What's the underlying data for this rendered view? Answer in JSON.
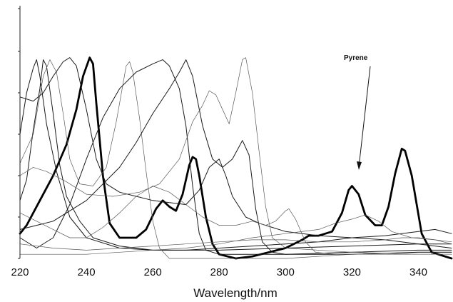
{
  "chart_data": {
    "type": "line",
    "title": "",
    "xlabel": "Wavelength/nm",
    "ylabel": "",
    "xlim": [
      220,
      350
    ],
    "ylim": [
      0,
      1
    ],
    "x_ticks": [
      "220",
      "240",
      "260",
      "280",
      "300",
      "320",
      "340"
    ],
    "grid": false,
    "legend": "none",
    "annotations": [
      {
        "text": "Pyrene",
        "target_x": 320,
        "target_y": 0.33
      }
    ],
    "series": [
      {
        "style": "bold",
        "points": [
          [
            220,
            0.12
          ],
          [
            222,
            0.16
          ],
          [
            226,
            0.28
          ],
          [
            230,
            0.4
          ],
          [
            234,
            0.55
          ],
          [
            237,
            0.72
          ],
          [
            239,
            0.88
          ],
          [
            241,
            0.97
          ],
          [
            242,
            0.94
          ],
          [
            243,
            0.75
          ],
          [
            245,
            0.4
          ],
          [
            247,
            0.17
          ],
          [
            250,
            0.1
          ],
          [
            255,
            0.1
          ],
          [
            258,
            0.14
          ],
          [
            261,
            0.24
          ],
          [
            263,
            0.28
          ],
          [
            265,
            0.25
          ],
          [
            267,
            0.23
          ],
          [
            269,
            0.31
          ],
          [
            271,
            0.45
          ],
          [
            272,
            0.49
          ],
          [
            273,
            0.48
          ],
          [
            274,
            0.4
          ],
          [
            276,
            0.2
          ],
          [
            278,
            0.07
          ],
          [
            280,
            0.02
          ],
          [
            285,
            0.0
          ],
          [
            290,
            0.01
          ],
          [
            295,
            0.03
          ],
          [
            300,
            0.05
          ],
          [
            305,
            0.09
          ],
          [
            307,
            0.11
          ],
          [
            310,
            0.11
          ],
          [
            314,
            0.13
          ],
          [
            317,
            0.22
          ],
          [
            319,
            0.33
          ],
          [
            320,
            0.35
          ],
          [
            322,
            0.31
          ],
          [
            324,
            0.21
          ],
          [
            327,
            0.16
          ],
          [
            329,
            0.16
          ],
          [
            331,
            0.25
          ],
          [
            333,
            0.41
          ],
          [
            335,
            0.53
          ],
          [
            336,
            0.52
          ],
          [
            338,
            0.4
          ],
          [
            341,
            0.12
          ],
          [
            344,
            0.03
          ],
          [
            350,
            0.0
          ]
        ]
      },
      {
        "style": "medium",
        "points": [
          [
            220,
            0.6
          ],
          [
            222,
            0.8
          ],
          [
            224,
            0.92
          ],
          [
            225,
            0.96
          ],
          [
            226,
            0.88
          ],
          [
            228,
            0.65
          ],
          [
            231,
            0.42
          ],
          [
            235,
            0.2
          ],
          [
            240,
            0.1
          ],
          [
            250,
            0.05
          ],
          [
            260,
            0.04
          ],
          [
            270,
            0.04
          ],
          [
            280,
            0.05
          ],
          [
            290,
            0.06
          ],
          [
            300,
            0.07
          ],
          [
            310,
            0.08
          ],
          [
            320,
            0.1
          ],
          [
            330,
            0.11
          ],
          [
            340,
            0.13
          ],
          [
            345,
            0.14
          ],
          [
            350,
            0.12
          ]
        ]
      },
      {
        "style": "medium",
        "points": [
          [
            220,
            0.28
          ],
          [
            222,
            0.38
          ],
          [
            224,
            0.62
          ],
          [
            226,
            0.82
          ],
          [
            227,
            0.96
          ],
          [
            228,
            0.93
          ],
          [
            230,
            0.7
          ],
          [
            232,
            0.45
          ],
          [
            234,
            0.3
          ],
          [
            238,
            0.18
          ],
          [
            242,
            0.1
          ],
          [
            250,
            0.06
          ],
          [
            260,
            0.04
          ],
          [
            280,
            0.04
          ],
          [
            300,
            0.05
          ],
          [
            320,
            0.06
          ],
          [
            340,
            0.07
          ],
          [
            350,
            0.07
          ]
        ]
      },
      {
        "style": "thin",
        "points": [
          [
            220,
            0.46
          ],
          [
            224,
            0.6
          ],
          [
            227,
            0.88
          ],
          [
            229,
            0.96
          ],
          [
            231,
            0.9
          ],
          [
            233,
            0.7
          ],
          [
            235,
            0.48
          ],
          [
            238,
            0.36
          ],
          [
            242,
            0.35
          ],
          [
            246,
            0.44
          ],
          [
            249,
            0.66
          ],
          [
            252,
            0.93
          ],
          [
            253,
            0.95
          ],
          [
            254,
            0.9
          ],
          [
            256,
            0.68
          ],
          [
            258,
            0.42
          ],
          [
            260,
            0.18
          ],
          [
            262,
            0.05
          ],
          [
            265,
            0.0
          ],
          [
            280,
            0.0
          ],
          [
            300,
            0.0
          ],
          [
            320,
            0.02
          ],
          [
            340,
            0.03
          ],
          [
            350,
            0.03
          ]
        ]
      },
      {
        "style": "medium",
        "points": [
          [
            220,
            0.78
          ],
          [
            224,
            0.76
          ],
          [
            227,
            0.8
          ],
          [
            230,
            0.88
          ],
          [
            233,
            0.95
          ],
          [
            235,
            0.97
          ],
          [
            237,
            0.93
          ],
          [
            240,
            0.72
          ],
          [
            243,
            0.48
          ],
          [
            246,
            0.36
          ],
          [
            250,
            0.32
          ],
          [
            255,
            0.3
          ],
          [
            260,
            0.28
          ],
          [
            265,
            0.27
          ],
          [
            270,
            0.26
          ],
          [
            274,
            0.33
          ],
          [
            277,
            0.44
          ],
          [
            280,
            0.48
          ],
          [
            282,
            0.4
          ],
          [
            284,
            0.3
          ],
          [
            288,
            0.2
          ],
          [
            292,
            0.17
          ],
          [
            296,
            0.15
          ],
          [
            300,
            0.13
          ],
          [
            310,
            0.11
          ],
          [
            320,
            0.1
          ],
          [
            330,
            0.09
          ],
          [
            340,
            0.07
          ],
          [
            350,
            0.05
          ]
        ]
      },
      {
        "style": "medium",
        "points": [
          [
            220,
            0.1
          ],
          [
            225,
            0.05
          ],
          [
            230,
            0.1
          ],
          [
            235,
            0.26
          ],
          [
            240,
            0.48
          ],
          [
            245,
            0.68
          ],
          [
            250,
            0.82
          ],
          [
            255,
            0.9
          ],
          [
            260,
            0.94
          ],
          [
            263,
            0.96
          ],
          [
            265,
            0.93
          ],
          [
            268,
            0.82
          ],
          [
            270,
            0.64
          ],
          [
            272,
            0.35
          ],
          [
            274,
            0.12
          ],
          [
            276,
            0.04
          ],
          [
            280,
            0.02
          ],
          [
            300,
            0.02
          ],
          [
            320,
            0.03
          ],
          [
            340,
            0.04
          ],
          [
            350,
            0.04
          ]
        ]
      },
      {
        "style": "medium",
        "points": [
          [
            220,
            0.14
          ],
          [
            225,
            0.16
          ],
          [
            230,
            0.18
          ],
          [
            240,
            0.28
          ],
          [
            250,
            0.44
          ],
          [
            255,
            0.56
          ],
          [
            260,
            0.7
          ],
          [
            265,
            0.82
          ],
          [
            268,
            0.9
          ],
          [
            270,
            0.96
          ],
          [
            272,
            0.88
          ],
          [
            275,
            0.64
          ],
          [
            278,
            0.48
          ],
          [
            281,
            0.44
          ],
          [
            284,
            0.48
          ],
          [
            286,
            0.54
          ],
          [
            287,
            0.57
          ],
          [
            289,
            0.5
          ],
          [
            291,
            0.24
          ],
          [
            293,
            0.08
          ],
          [
            296,
            0.03
          ],
          [
            300,
            0.02
          ],
          [
            320,
            0.02
          ],
          [
            340,
            0.03
          ],
          [
            350,
            0.03
          ]
        ]
      },
      {
        "style": "thin",
        "points": [
          [
            220,
            0.4
          ],
          [
            224,
            0.44
          ],
          [
            228,
            0.42
          ],
          [
            234,
            0.37
          ],
          [
            240,
            0.31
          ],
          [
            248,
            0.3
          ],
          [
            256,
            0.32
          ],
          [
            262,
            0.36
          ],
          [
            268,
            0.48
          ],
          [
            272,
            0.66
          ],
          [
            275,
            0.74
          ],
          [
            277,
            0.81
          ],
          [
            279,
            0.79
          ],
          [
            281,
            0.72
          ],
          [
            283,
            0.65
          ],
          [
            285,
            0.8
          ],
          [
            287,
            0.96
          ],
          [
            288,
            0.97
          ],
          [
            290,
            0.8
          ],
          [
            292,
            0.52
          ],
          [
            294,
            0.25
          ],
          [
            296,
            0.1
          ],
          [
            300,
            0.05
          ],
          [
            320,
            0.03
          ],
          [
            340,
            0.02
          ],
          [
            350,
            0.02
          ]
        ]
      },
      {
        "style": "thin",
        "points": [
          [
            220,
            0.22
          ],
          [
            225,
            0.18
          ],
          [
            230,
            0.14
          ],
          [
            235,
            0.1
          ],
          [
            240,
            0.1
          ],
          [
            245,
            0.15
          ],
          [
            250,
            0.22
          ],
          [
            255,
            0.3
          ],
          [
            260,
            0.35
          ],
          [
            265,
            0.32
          ],
          [
            270,
            0.26
          ],
          [
            275,
            0.2
          ],
          [
            280,
            0.16
          ],
          [
            285,
            0.16
          ],
          [
            290,
            0.18
          ],
          [
            294,
            0.16
          ],
          [
            297,
            0.18
          ],
          [
            300,
            0.23
          ],
          [
            301,
            0.24
          ],
          [
            303,
            0.19
          ],
          [
            306,
            0.08
          ],
          [
            309,
            0.03
          ],
          [
            315,
            0.02
          ],
          [
            330,
            0.02
          ],
          [
            350,
            0.02
          ]
        ]
      },
      {
        "style": "thin",
        "points": [
          [
            220,
            0.02
          ],
          [
            230,
            0.02
          ],
          [
            240,
            0.02
          ],
          [
            250,
            0.03
          ],
          [
            260,
            0.04
          ],
          [
            270,
            0.05
          ],
          [
            280,
            0.07
          ],
          [
            290,
            0.1
          ],
          [
            300,
            0.12
          ],
          [
            310,
            0.14
          ],
          [
            315,
            0.17
          ],
          [
            320,
            0.19
          ],
          [
            324,
            0.21
          ],
          [
            328,
            0.18
          ],
          [
            332,
            0.13
          ],
          [
            338,
            0.1
          ],
          [
            345,
            0.09
          ],
          [
            350,
            0.08
          ]
        ]
      },
      {
        "style": "thin",
        "points": [
          [
            220,
            0.07
          ],
          [
            230,
            0.05
          ],
          [
            240,
            0.04
          ],
          [
            250,
            0.05
          ],
          [
            260,
            0.06
          ],
          [
            270,
            0.07
          ],
          [
            280,
            0.08
          ],
          [
            290,
            0.09
          ],
          [
            300,
            0.09
          ],
          [
            310,
            0.08
          ],
          [
            320,
            0.08
          ],
          [
            330,
            0.09
          ],
          [
            335,
            0.1
          ],
          [
            340,
            0.1
          ],
          [
            345,
            0.09
          ],
          [
            350,
            0.07
          ]
        ]
      }
    ]
  }
}
